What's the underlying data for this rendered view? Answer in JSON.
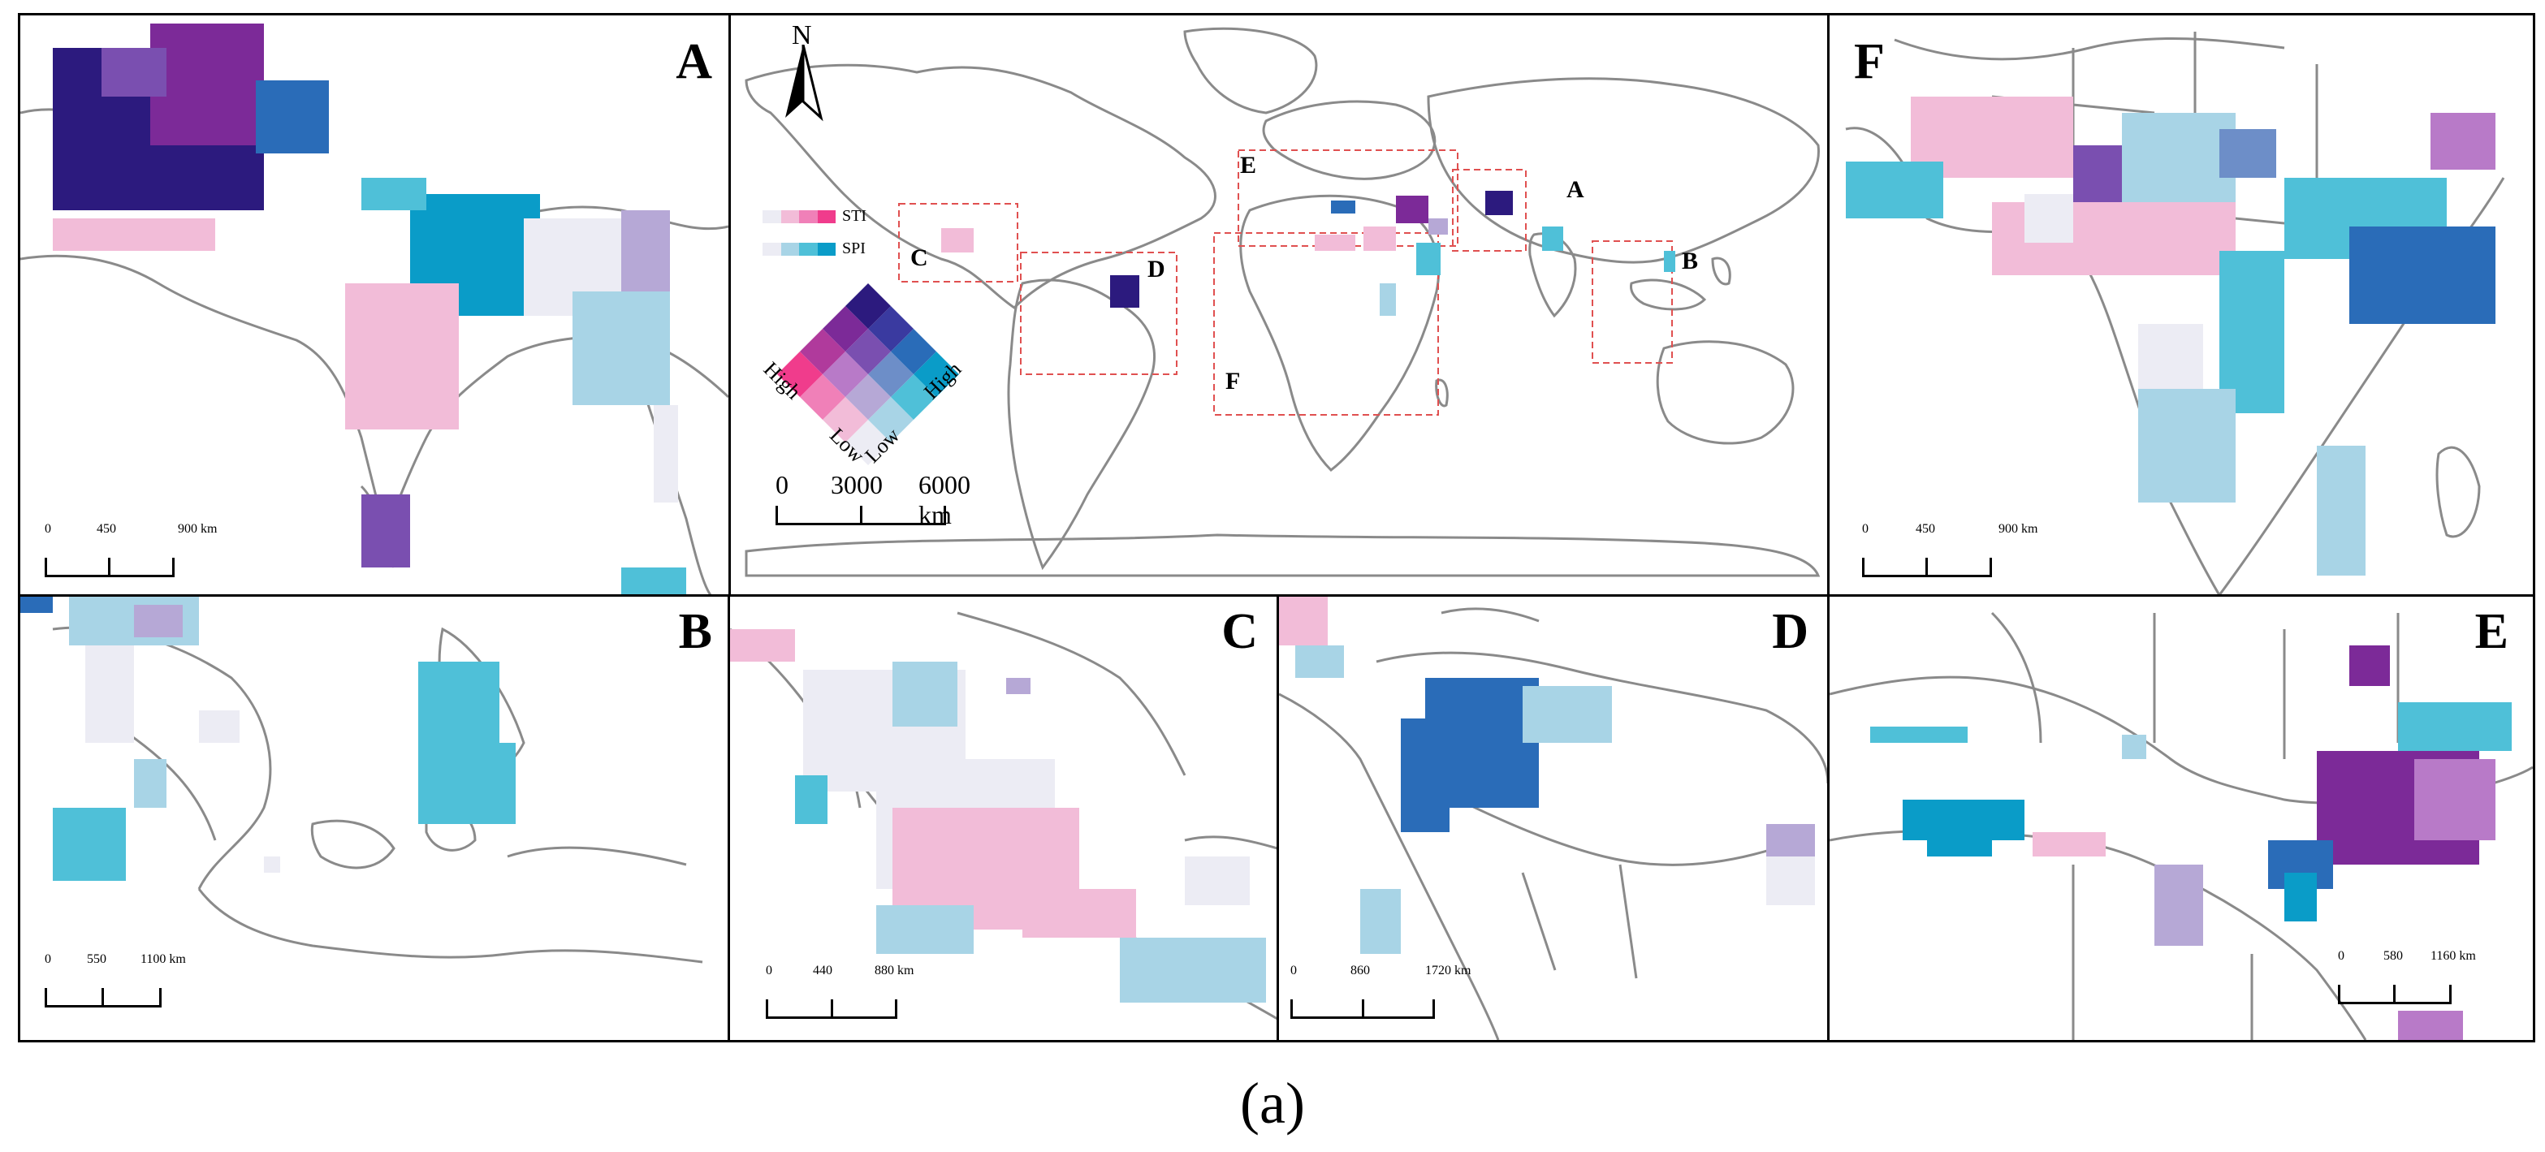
{
  "caption": "(a)",
  "panels": {
    "A": {
      "label": "A",
      "scale": [
        "0",
        "450",
        "900 km"
      ]
    },
    "B": {
      "label": "B",
      "scale": [
        "0",
        "550",
        "1100 km"
      ]
    },
    "C": {
      "label": "C",
      "scale": [
        "0",
        "440",
        "880 km"
      ]
    },
    "D": {
      "label": "D",
      "scale": [
        "0",
        "860",
        "1720 km"
      ]
    },
    "E": {
      "label": "E",
      "scale": [
        "0",
        "580",
        "1160 km"
      ]
    },
    "F": {
      "label": "F",
      "scale": [
        "0",
        "450",
        "900 km"
      ]
    }
  },
  "world": {
    "north": "N",
    "scale": [
      "0",
      "3000",
      "6000 km"
    ],
    "legend": {
      "sti": "STI",
      "spi": "SPI",
      "high_left": "High",
      "high_right": "High",
      "low_left": "Low",
      "low_right": "Low"
    },
    "box_labels": [
      "A",
      "B",
      "C",
      "D",
      "E",
      "F"
    ]
  },
  "colors": {
    "boundary": "#8a8a8a",
    "inset_box": "#e05050",
    "bivariate": [
      [
        "#ececf4",
        "#a8d4e6",
        "#4fc0d8",
        "#0a9cc8"
      ],
      [
        "#f2bcd8",
        "#b6a8d6",
        "#6d8ec8",
        "#2a6cb8"
      ],
      [
        "#f080b8",
        "#b87ac8",
        "#7a4fb0",
        "#3a3aa0"
      ],
      [
        "#f03c8c",
        "#b03a9c",
        "#7c2a98",
        "#2c1a7e"
      ]
    ]
  }
}
